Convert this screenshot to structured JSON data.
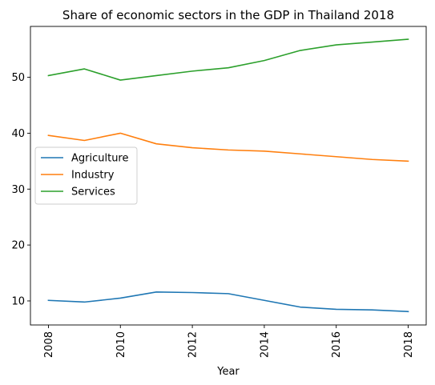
{
  "chart_data": {
    "type": "line",
    "title": "Share of economic sectors in the GDP in Thailand 2018",
    "xlabel": "Year",
    "ylabel": "",
    "x": [
      2008,
      2009,
      2010,
      2011,
      2012,
      2013,
      2014,
      2015,
      2016,
      2017,
      2018
    ],
    "xticks": [
      "2008",
      "2010",
      "2012",
      "2014",
      "2016",
      "2018"
    ],
    "yticks": [
      "10",
      "20",
      "30",
      "40",
      "50"
    ],
    "xlim": [
      2007.5,
      2018.5
    ],
    "ylim": [
      5.7,
      59.1
    ],
    "grid": false,
    "legend_position": "center-left",
    "series": [
      {
        "name": "Agriculture",
        "color": "#1f77b4",
        "values": [
          10.1,
          9.8,
          10.5,
          11.6,
          11.5,
          11.3,
          10.1,
          8.9,
          8.5,
          8.4,
          8.1
        ]
      },
      {
        "name": "Industry",
        "color": "#ff7f0e",
        "values": [
          39.6,
          38.7,
          40.0,
          38.1,
          37.4,
          37.0,
          36.8,
          36.3,
          35.8,
          35.3,
          35.0
        ]
      },
      {
        "name": "Services",
        "color": "#2ca02c",
        "values": [
          50.3,
          51.5,
          49.5,
          50.3,
          51.1,
          51.7,
          53.0,
          54.8,
          55.8,
          56.3,
          56.8
        ]
      }
    ]
  }
}
